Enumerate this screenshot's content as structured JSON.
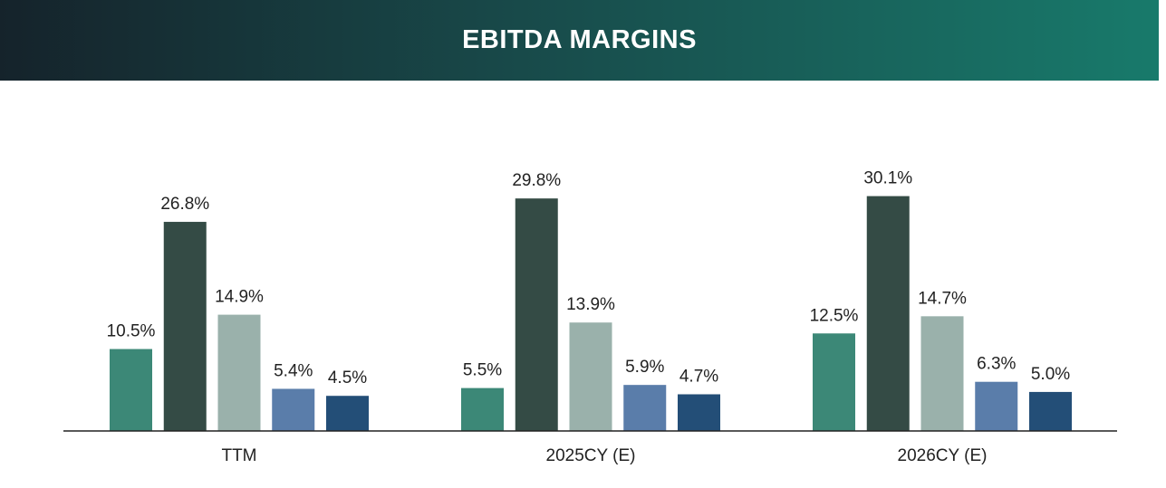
{
  "header": {
    "title": "EBITDA MARGINS"
  },
  "chart_data": {
    "type": "bar",
    "title": "EBITDA MARGINS",
    "categories": [
      "TTM",
      "2025CY (E)",
      "2026CY (E)"
    ],
    "series": [
      {
        "values": [
          10.5,
          5.5,
          12.5
        ],
        "color": "#3c8877"
      },
      {
        "values": [
          26.8,
          29.8,
          30.1
        ],
        "color": "#344b45"
      },
      {
        "values": [
          14.9,
          13.9,
          14.7
        ],
        "color": "#9ab1ab"
      },
      {
        "values": [
          5.4,
          5.9,
          6.3
        ],
        "color": "#5a7daa"
      },
      {
        "values": [
          4.5,
          4.7,
          5.0
        ],
        "color": "#234e77"
      }
    ],
    "value_suffix": "%",
    "ylim": [
      0,
      34
    ],
    "grid": false,
    "legend": "none"
  }
}
